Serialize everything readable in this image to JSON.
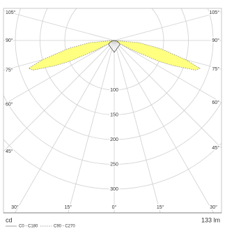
{
  "chart_data": {
    "type": "polar",
    "unit": "cd",
    "flux": "133 lm",
    "x": [
      -90,
      -85,
      -80,
      -75,
      -72,
      -70,
      -67,
      -65,
      -62,
      -60,
      -55,
      0,
      55,
      60,
      62,
      65,
      67,
      70,
      72,
      75,
      80,
      85,
      90
    ],
    "series": [
      {
        "name": "C0 - C180",
        "color": "#ffff80",
        "stroke": "#888888",
        "values": [
          0,
          50,
          95,
          150,
          182,
          175,
          130,
          100,
          40,
          15,
          0,
          0,
          0,
          15,
          40,
          100,
          130,
          175,
          182,
          150,
          95,
          50,
          0
        ]
      },
      {
        "name": "C90 - C270",
        "color": "#555555",
        "values": [
          0,
          2,
          4,
          6,
          7,
          8,
          9,
          10,
          11,
          12,
          14,
          24,
          14,
          12,
          11,
          10,
          9,
          8,
          7,
          6,
          4,
          2,
          0
        ]
      }
    ],
    "rlim": [
      0,
      350
    ],
    "rticks": [
      100,
      150,
      200,
      250,
      300
    ],
    "angleticks": [
      {
        "value": -105,
        "label": "105°"
      },
      {
        "value": -90,
        "label": "90°"
      },
      {
        "value": -75,
        "label": "75°"
      },
      {
        "value": -60,
        "label": "60°"
      },
      {
        "value": -45,
        "label": "45°"
      },
      {
        "value": -30,
        "label": "30°"
      },
      {
        "value": -15,
        "label": "15°"
      },
      {
        "value": 0,
        "label": "0°"
      },
      {
        "value": 15,
        "label": "15°"
      },
      {
        "value": 30,
        "label": "30°"
      },
      {
        "value": 45,
        "label": "45°"
      },
      {
        "value": 60,
        "label": "60°"
      },
      {
        "value": 75,
        "label": "75°"
      },
      {
        "value": 90,
        "label": "90°"
      },
      {
        "value": 105,
        "label": "105°"
      }
    ]
  }
}
